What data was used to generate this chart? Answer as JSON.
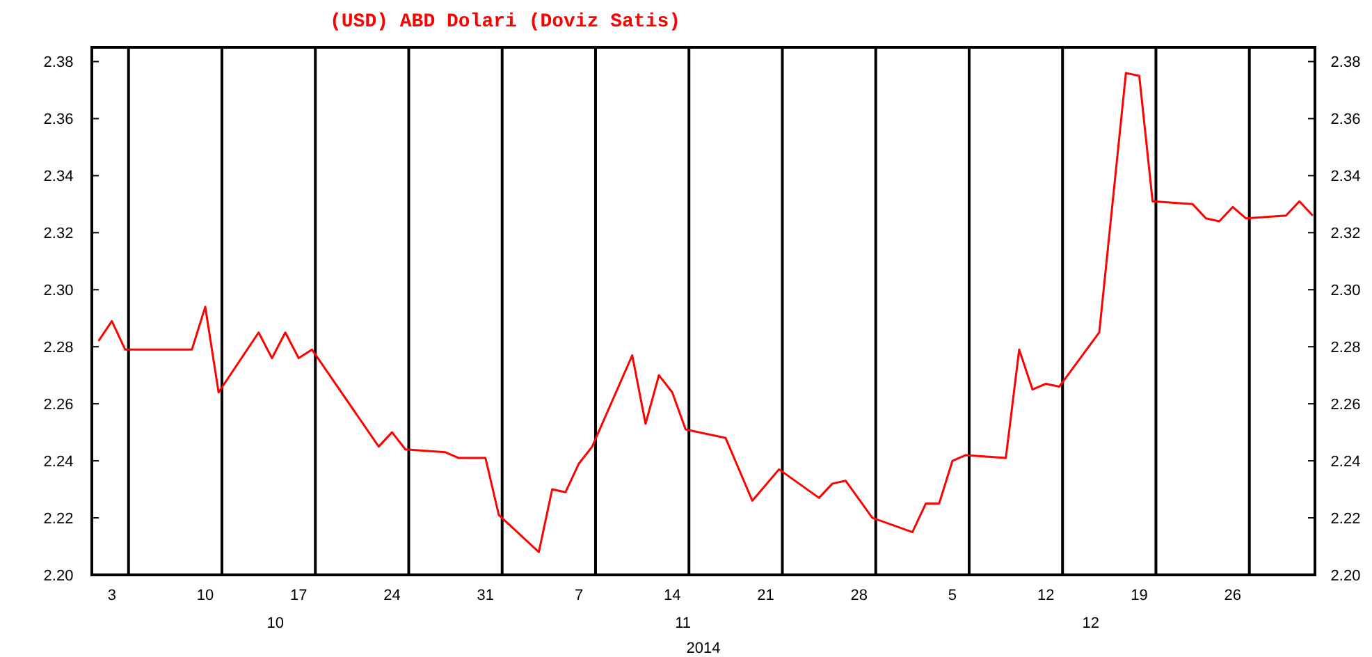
{
  "chart_data": {
    "type": "line",
    "title": "(USD) ABD Dolari  (Doviz Satis)",
    "xlabel": "2014",
    "x": [
      "2014-10-02",
      "2014-10-03",
      "2014-10-04",
      "2014-10-09",
      "2014-10-10",
      "2014-10-11",
      "2014-10-14",
      "2014-10-15",
      "2014-10-16",
      "2014-10-17",
      "2014-10-18",
      "2014-10-23",
      "2014-10-24",
      "2014-10-25",
      "2014-10-28",
      "2014-10-29",
      "2014-10-31",
      "2014-11-01",
      "2014-11-04",
      "2014-11-05",
      "2014-11-06",
      "2014-11-07",
      "2014-11-08",
      "2014-11-11",
      "2014-11-12",
      "2014-11-13",
      "2014-11-14",
      "2014-11-15",
      "2014-11-18",
      "2014-11-20",
      "2014-11-22",
      "2014-11-25",
      "2014-11-26",
      "2014-11-27",
      "2014-11-29",
      "2014-12-02",
      "2014-12-03",
      "2014-12-04",
      "2014-12-05",
      "2014-12-06",
      "2014-12-09",
      "2014-12-10",
      "2014-12-11",
      "2014-12-12",
      "2014-12-13",
      "2014-12-16",
      "2014-12-18",
      "2014-12-19",
      "2014-12-20",
      "2014-12-23",
      "2014-12-24",
      "2014-12-25",
      "2014-12-26",
      "2014-12-27",
      "2014-12-30",
      "2014-12-31",
      "2015-01-01"
    ],
    "series": [
      {
        "color": "#ff0000",
        "values": [
          2.282,
          2.289,
          2.279,
          2.279,
          2.294,
          2.264,
          2.285,
          2.276,
          2.285,
          2.276,
          2.279,
          2.245,
          2.25,
          2.244,
          2.243,
          2.241,
          2.241,
          2.221,
          2.208,
          2.23,
          2.229,
          2.239,
          2.245,
          2.277,
          2.253,
          2.27,
          2.264,
          2.251,
          2.248,
          2.226,
          2.237,
          2.227,
          2.232,
          2.233,
          2.22,
          2.215,
          2.225,
          2.225,
          2.24,
          2.242,
          2.241,
          2.279,
          2.265,
          2.267,
          2.266,
          2.285,
          2.376,
          2.375,
          2.331,
          2.33,
          2.325,
          2.324,
          2.329,
          2.325,
          2.326,
          2.331,
          2.326
        ]
      }
    ],
    "xlim": [
      "2014-10-01T12:00",
      "2015-01-01T04:00"
    ],
    "xticks": [
      {
        "value": "2014-10-03",
        "label": "3"
      },
      {
        "value": "2014-10-10",
        "label": "10"
      },
      {
        "value": "2014-10-17",
        "label": "17"
      },
      {
        "value": "2014-10-24",
        "label": "24"
      },
      {
        "value": "2014-10-31",
        "label": "31"
      },
      {
        "value": "2014-11-07",
        "label": "7"
      },
      {
        "value": "2014-11-14",
        "label": "14"
      },
      {
        "value": "2014-11-21",
        "label": "21"
      },
      {
        "value": "2014-11-28",
        "label": "28"
      },
      {
        "value": "2014-12-05",
        "label": "5"
      },
      {
        "value": "2014-12-12",
        "label": "12"
      },
      {
        "value": "2014-12-19",
        "label": "19"
      },
      {
        "value": "2014-12-26",
        "label": "26"
      }
    ],
    "ylim": [
      2.2,
      2.385
    ],
    "yticks": [
      {
        "value": 2.2,
        "label": "2.20"
      },
      {
        "value": 2.22,
        "label": "2.22"
      },
      {
        "value": 2.24,
        "label": "2.24"
      },
      {
        "value": 2.26,
        "label": "2.26"
      },
      {
        "value": 2.28,
        "label": "2.28"
      },
      {
        "value": 2.3,
        "label": "2.30"
      },
      {
        "value": 2.32,
        "label": "2.32"
      },
      {
        "value": 2.34,
        "label": "2.34"
      },
      {
        "value": 2.36,
        "label": "2.36"
      },
      {
        "value": 2.38,
        "label": "2.38"
      }
    ],
    "y2lim": [
      2.2,
      2.385
    ],
    "y2ticks": [
      {
        "value": 2.2,
        "label": "2.20"
      },
      {
        "value": 2.22,
        "label": "2.22"
      },
      {
        "value": 2.24,
        "label": "2.24"
      },
      {
        "value": 2.26,
        "label": "2.26"
      },
      {
        "value": 2.28,
        "label": "2.28"
      },
      {
        "value": 2.3,
        "label": "2.30"
      },
      {
        "value": 2.32,
        "label": "2.32"
      },
      {
        "value": 2.34,
        "label": "2.34"
      },
      {
        "value": 2.36,
        "label": "2.36"
      },
      {
        "value": 2.38,
        "label": "2.38"
      }
    ],
    "ref_lines": [
      {
        "axis": "x",
        "value": "2014-10-04T06:00",
        "color": "#000000"
      },
      {
        "axis": "x",
        "value": "2014-10-11T06:00",
        "color": "#000000"
      },
      {
        "axis": "x",
        "value": "2014-10-18T06:00",
        "color": "#000000"
      },
      {
        "axis": "x",
        "value": "2014-10-25T06:00",
        "color": "#000000"
      },
      {
        "axis": "x",
        "value": "2014-11-01T06:00",
        "color": "#000000"
      },
      {
        "axis": "x",
        "value": "2014-11-08T06:00",
        "color": "#000000"
      },
      {
        "axis": "x",
        "value": "2014-11-15T06:00",
        "color": "#000000"
      },
      {
        "axis": "x",
        "value": "2014-11-22T06:00",
        "color": "#000000"
      },
      {
        "axis": "x",
        "value": "2014-11-29T06:00",
        "color": "#000000"
      },
      {
        "axis": "x",
        "value": "2014-12-06T06:00",
        "color": "#000000"
      },
      {
        "axis": "x",
        "value": "2014-12-13T06:00",
        "color": "#000000"
      },
      {
        "axis": "x",
        "value": "2014-12-20T06:00",
        "color": "#000000"
      },
      {
        "axis": "x",
        "value": "2014-12-27T06:00",
        "color": "#000000"
      }
    ],
    "annotations": [
      "10",
      "11",
      "12"
    ],
    "grid": false,
    "marker": "none",
    "line_style": "solid"
  }
}
